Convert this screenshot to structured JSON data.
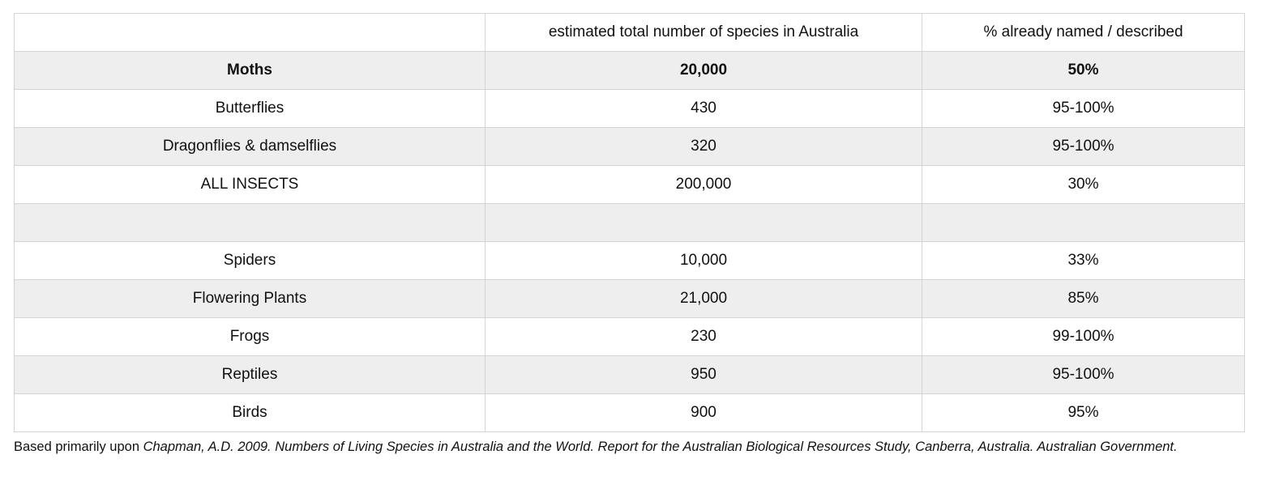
{
  "table": {
    "headers": [
      "",
      "estimated total number of species in Australia",
      "% already named / described"
    ],
    "rows": [
      {
        "group": "Moths",
        "estimated": "20,000",
        "named": "50%",
        "bold": true
      },
      {
        "group": "Butterflies",
        "estimated": "430",
        "named": "95-100%"
      },
      {
        "group": "Dragonflies & damselflies",
        "estimated": "320",
        "named": "95-100%"
      },
      {
        "group": "ALL INSECTS",
        "estimated": "200,000",
        "named": "30%"
      },
      {
        "group": "",
        "estimated": "",
        "named": ""
      },
      {
        "group": "Spiders",
        "estimated": "10,000",
        "named": "33%"
      },
      {
        "group": "Flowering Plants",
        "estimated": "21,000",
        "named": "85%"
      },
      {
        "group": "Frogs",
        "estimated": "230",
        "named": "99-100%"
      },
      {
        "group": "Reptiles",
        "estimated": "950",
        "named": "95-100%"
      },
      {
        "group": "Birds",
        "estimated": "900",
        "named": "95%"
      }
    ]
  },
  "footnote": {
    "prefix": "Based primarily upon ",
    "citation": "Chapman, A.D. 2009. Numbers of Living Species in Australia and the World. Report for the Australian Biological Resources Study, Canberra, Australia. Australian Government."
  }
}
